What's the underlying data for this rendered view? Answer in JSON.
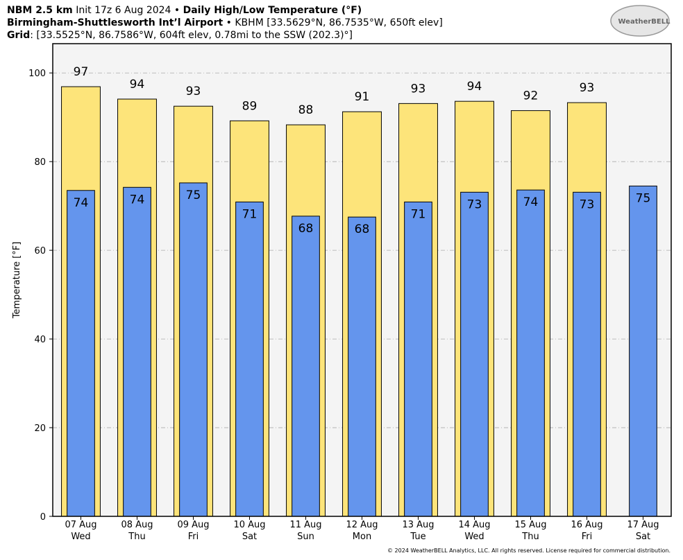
{
  "chart_data": {
    "type": "bar",
    "header": [
      [
        {
          "text": "NBM 2.5 km",
          "bold": true
        },
        {
          "text": " Init 17z 6 Aug 2024 • ",
          "bold": false
        },
        {
          "text": "Daily High/Low Temperature (°F)",
          "bold": true
        }
      ],
      [
        {
          "text": "Birmingham-Shuttlesworth Int’l Airport",
          "bold": true
        },
        {
          "text": " • KBHM [33.5629°N, 86.7535°W, 650ft elev]",
          "bold": false
        }
      ],
      [
        {
          "text": "Grid",
          "bold": true
        },
        {
          "text": ": [33.5525°N, 86.7586°W, 604ft elev, 0.78mi to the SSW (202.3)°]",
          "bold": false
        }
      ]
    ],
    "logo_text": "WeatherBELL",
    "footer": "© 2024 WeatherBELL Analytics, LLC. All rights reserved. License required for commercial distribution.",
    "y_label": "Temperature [°F]",
    "categories": [
      "07 Aug",
      "08 Aug",
      "09 Aug",
      "10 Aug",
      "11 Aug",
      "12 Aug",
      "13 Aug",
      "14 Aug",
      "15 Aug",
      "16 Aug",
      "17 Aug"
    ],
    "weekdays": [
      "Wed",
      "Thu",
      "Fri",
      "Sat",
      "Sun",
      "Mon",
      "Tue",
      "Wed",
      "Thu",
      "Fri",
      "Sat"
    ],
    "series": [
      {
        "name": "High",
        "color": "#fde47a",
        "width": 0.69,
        "label_pos": "above",
        "values": [
          96.9,
          94.1,
          92.5,
          89.2,
          88.3,
          91.25,
          93.1,
          93.6,
          91.5,
          93.3,
          null
        ],
        "value_labels": [
          "97",
          "94",
          "93",
          "89",
          "88",
          "91",
          "93",
          "94",
          "92",
          "93",
          null
        ]
      },
      {
        "name": "Low",
        "color": "#6495ed",
        "width": 0.49,
        "label_pos": "inside",
        "values": [
          73.5,
          74.2,
          75.2,
          70.9,
          67.7,
          67.5,
          70.9,
          73.1,
          73.6,
          73.1,
          74.5
        ],
        "value_labels": [
          "74",
          "74",
          "75",
          "71",
          "68",
          "68",
          "71",
          "73",
          "74",
          "73",
          "75"
        ]
      }
    ],
    "ylim": [
      0,
      106.6
    ],
    "yticks": [
      0,
      20,
      40,
      60,
      80,
      100
    ],
    "grid": true
  }
}
